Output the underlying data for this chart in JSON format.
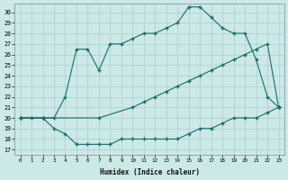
{
  "xlabel": "Humidex (Indice chaleur)",
  "bg_color": "#cce8e8",
  "grid_color": "#aacfcf",
  "line_color": "#1a6b6b",
  "xlim": [
    -0.5,
    23.5
  ],
  "ylim": [
    16.5,
    30.8
  ],
  "yticks": [
    17,
    18,
    19,
    20,
    21,
    22,
    23,
    24,
    25,
    26,
    27,
    28,
    29,
    30
  ],
  "xticks": [
    0,
    1,
    2,
    3,
    4,
    5,
    6,
    7,
    8,
    9,
    10,
    11,
    12,
    13,
    14,
    15,
    16,
    17,
    18,
    19,
    20,
    21,
    22,
    23
  ],
  "line1_x": [
    0,
    1,
    2,
    3,
    4,
    5,
    6,
    7,
    8,
    9,
    10,
    11,
    12,
    13,
    14,
    15,
    16,
    17,
    18,
    19,
    20,
    21,
    22,
    23
  ],
  "line1_y": [
    20,
    20,
    20,
    19,
    18.5,
    17.5,
    17.5,
    17.5,
    17.5,
    18,
    18,
    18,
    18,
    18,
    18,
    18.5,
    19,
    19,
    19.5,
    20,
    20,
    20,
    20.5,
    21
  ],
  "line2_x": [
    0,
    2,
    7,
    10,
    11,
    12,
    13,
    14,
    15,
    16,
    17,
    18,
    19,
    20,
    21,
    22,
    23
  ],
  "line2_y": [
    20,
    20,
    20,
    21,
    21.5,
    22,
    22.5,
    23,
    23.5,
    24,
    24.5,
    25,
    25.5,
    26,
    26.5,
    27,
    21
  ],
  "line3_x": [
    0,
    2,
    3,
    4,
    5,
    6,
    7,
    8,
    9,
    10,
    11,
    12,
    13,
    14,
    15,
    16,
    17,
    18,
    19,
    20,
    21,
    22,
    23
  ],
  "line3_y": [
    20,
    20,
    20,
    22,
    26.5,
    26.5,
    24.5,
    27,
    27,
    27.5,
    28,
    28,
    28.5,
    29,
    30.5,
    30.5,
    29.5,
    28.5,
    28,
    28,
    25.5,
    22,
    21
  ]
}
